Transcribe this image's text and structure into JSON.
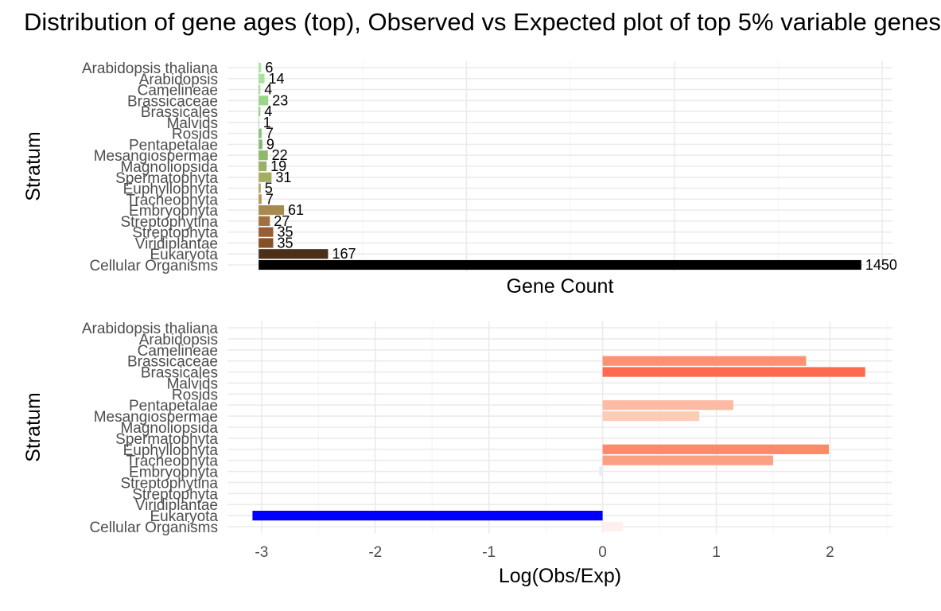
{
  "title": "Distribution of gene ages (top), Observed vs Expected plot of top 5% variable genes",
  "chart_data": [
    {
      "type": "bar",
      "orientation": "horizontal",
      "categories": [
        "Arabidopsis thaliana",
        "Arabidopsis",
        "Camelineae",
        "Brassicaceae",
        "Brassicales",
        "Malvids",
        "Rosids",
        "Pentapetalae",
        "Mesangiospermae",
        "Magnoliopsida",
        "Spermatophyta",
        "Euphyllophyta",
        "Tracheophyta",
        "Embryophyta",
        "Streptophytina",
        "Streptophyta",
        "Viridiplantae",
        "Eukaryota",
        "Cellular Organisms"
      ],
      "values": [
        6,
        14,
        4,
        23,
        4,
        1,
        7,
        9,
        22,
        19,
        31,
        5,
        7,
        61,
        27,
        35,
        35,
        167,
        1450
      ],
      "colors": [
        "#a8e8a0",
        "#a5e39a",
        "#a0dd94",
        "#9ad58c",
        "#94cd84",
        "#8fc680",
        "#8bc07a",
        "#87b874",
        "#8fb86a",
        "#9ab066",
        "#a5ad62",
        "#aea85c",
        "#b09a58",
        "#a68a50",
        "#a07040",
        "#985d34",
        "#845028",
        "#4a3018",
        "#000000"
      ],
      "xlabel": "Gene Count",
      "ylabel": "Stratum",
      "xlim": [
        -75,
        1525
      ]
    },
    {
      "type": "bar",
      "orientation": "horizontal",
      "categories": [
        "Arabidopsis thaliana",
        "Arabidopsis",
        "Camelineae",
        "Brassicaceae",
        "Brassicales",
        "Malvids",
        "Rosids",
        "Pentapetalae",
        "Mesangiospermae",
        "Magnoliopsida",
        "Spermatophyta",
        "Euphyllophyta",
        "Tracheophyta",
        "Embryophyta",
        "Streptophytina",
        "Streptophyta",
        "Viridiplantae",
        "Eukaryota",
        "Cellular Organisms"
      ],
      "values": [
        0,
        0,
        0,
        1.79,
        2.31,
        0,
        0,
        1.15,
        0.85,
        0,
        0,
        1.99,
        1.5,
        -0.03,
        0,
        0,
        0,
        -3.08,
        0.18
      ],
      "colors": [
        "#ffffff",
        "#ffffff",
        "#ffffff",
        "#fc9272",
        "#fe6a4e",
        "#ffffff",
        "#ffffff",
        "#fdbba5",
        "#fdccb8",
        "#ffffff",
        "#ffffff",
        "#fc8a6a",
        "#fca083",
        "#e8eaff",
        "#ffffff",
        "#ffffff",
        "#ffffff",
        "#0000ff",
        "#fff0ed"
      ],
      "xlabel": "Log(Obs/Exp)",
      "ylabel": "Stratum",
      "xticks": [
        -3,
        -2,
        -1,
        0,
        1,
        2
      ],
      "xlim": [
        -3.3,
        2.55
      ]
    }
  ]
}
